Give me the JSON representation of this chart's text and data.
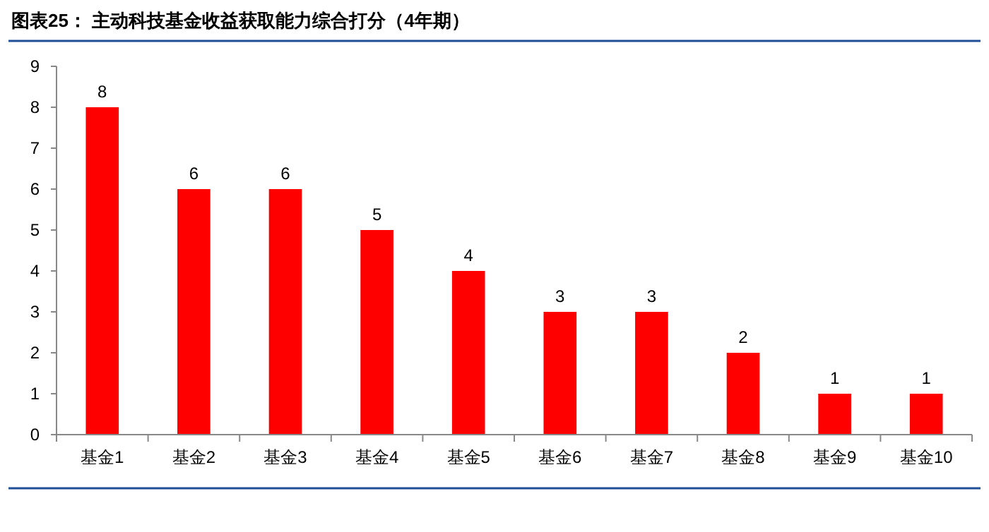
{
  "chart_data": {
    "type": "bar",
    "title": "图表25：  主动科技基金收益获取能力综合打分（4年期）",
    "categories": [
      "基金1",
      "基金2",
      "基金3",
      "基金4",
      "基金5",
      "基金6",
      "基金7",
      "基金8",
      "基金9",
      "基金10"
    ],
    "values": [
      8,
      6,
      6,
      5,
      4,
      3,
      3,
      2,
      1,
      1
    ],
    "color": "#ff0000",
    "ylim": [
      0,
      9
    ],
    "yticks": [
      0,
      1,
      2,
      3,
      4,
      5,
      6,
      7,
      8,
      9
    ],
    "grid": false,
    "data_labels": true
  }
}
